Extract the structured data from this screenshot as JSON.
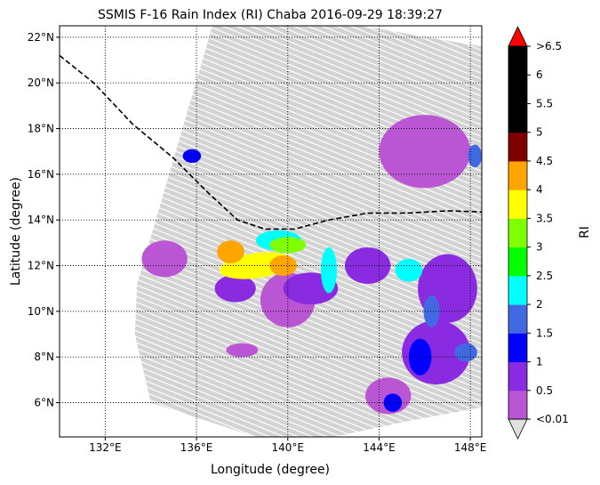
{
  "chart_data": {
    "type": "heatmap",
    "title": "SSMIS F-16 Rain Index (RI) Chaba 2016-09-29 18:39:27",
    "xlabel": "Longitude (degree)",
    "ylabel": "Latitude (degree)",
    "xlim": [
      130,
      148.5
    ],
    "ylim": [
      4.5,
      22.5
    ],
    "x_ticks": [
      {
        "value": 132,
        "label": "132°E"
      },
      {
        "value": 136,
        "label": "136°E"
      },
      {
        "value": 140,
        "label": "140°E"
      },
      {
        "value": 144,
        "label": "144°E"
      },
      {
        "value": 148,
        "label": "148°E"
      }
    ],
    "y_ticks": [
      {
        "value": 6,
        "label": "6°N"
      },
      {
        "value": 8,
        "label": "8°N"
      },
      {
        "value": 10,
        "label": "10°N"
      },
      {
        "value": 12,
        "label": "12°N"
      },
      {
        "value": 14,
        "label": "14°N"
      },
      {
        "value": 16,
        "label": "16°N"
      },
      {
        "value": 18,
        "label": "18°N"
      },
      {
        "value": 20,
        "label": "20°N"
      },
      {
        "value": 22,
        "label": "22°N"
      }
    ],
    "grid": true,
    "swath": {
      "color": "#d3d3d3",
      "polygon": [
        [
          136.7,
          22.5
        ],
        [
          143.2,
          22.5
        ],
        [
          148.5,
          21.6
        ],
        [
          148.5,
          5.8
        ],
        [
          145.3,
          5.2
        ],
        [
          142,
          4.5
        ],
        [
          138.6,
          4.5
        ],
        [
          134,
          6.0
        ],
        [
          133.3,
          9.0
        ],
        [
          133.4,
          11.2
        ]
      ]
    },
    "storm_track": {
      "style": "dashed",
      "color": "#000000",
      "points": [
        [
          130,
          21.2
        ],
        [
          131.5,
          20.0
        ],
        [
          133.2,
          18.2
        ],
        [
          135,
          16.7
        ],
        [
          136.5,
          15.2
        ],
        [
          137.8,
          14.0
        ],
        [
          139.0,
          13.6
        ],
        [
          140.3,
          13.6
        ],
        [
          141.8,
          14.0
        ],
        [
          143.5,
          14.3
        ],
        [
          145.2,
          14.3
        ],
        [
          147,
          14.4
        ],
        [
          148.5,
          14.35
        ]
      ]
    },
    "rain_cells": [
      {
        "lon": 138.6,
        "lat": 12.0,
        "rx": 1.6,
        "ry": 0.55,
        "rot": -8,
        "value": 3.8
      },
      {
        "lon": 137.5,
        "lat": 12.6,
        "rx": 0.6,
        "ry": 0.5,
        "rot": 0,
        "value": 4.0
      },
      {
        "lon": 139.8,
        "lat": 12.0,
        "rx": 0.6,
        "ry": 0.45,
        "rot": 0,
        "value": 4.2
      },
      {
        "lon": 140.0,
        "lat": 12.9,
        "rx": 0.8,
        "ry": 0.35,
        "rot": 0,
        "value": 3.2
      },
      {
        "lon": 139.6,
        "lat": 13.1,
        "rx": 1.0,
        "ry": 0.45,
        "rot": 0,
        "value": 2.2
      },
      {
        "lon": 141.8,
        "lat": 11.8,
        "rx": 0.35,
        "ry": 1.0,
        "rot": 0,
        "value": 2.2
      },
      {
        "lon": 145.3,
        "lat": 11.8,
        "rx": 0.6,
        "ry": 0.5,
        "rot": 0,
        "value": 2.2
      },
      {
        "lon": 146.3,
        "lat": 10.0,
        "rx": 0.35,
        "ry": 0.7,
        "rot": 0,
        "value": 1.7
      },
      {
        "lon": 147.8,
        "lat": 8.2,
        "rx": 0.5,
        "ry": 0.4,
        "rot": 0,
        "value": 1.7
      },
      {
        "lon": 145.8,
        "lat": 8.0,
        "rx": 0.5,
        "ry": 0.8,
        "rot": 0,
        "value": 1.2
      },
      {
        "lon": 148.2,
        "lat": 16.8,
        "rx": 0.3,
        "ry": 0.5,
        "rot": 0,
        "value": 1.7
      },
      {
        "lon": 135.8,
        "lat": 16.8,
        "rx": 0.4,
        "ry": 0.3,
        "rot": 0,
        "value": 1.2
      },
      {
        "lon": 144.6,
        "lat": 6.0,
        "rx": 0.4,
        "ry": 0.4,
        "rot": 0,
        "value": 1.2
      },
      {
        "lon": 137.7,
        "lat": 11.0,
        "rx": 0.9,
        "ry": 0.6,
        "rot": 0,
        "value": 0.7
      },
      {
        "lon": 141.0,
        "lat": 11.0,
        "rx": 1.2,
        "ry": 0.7,
        "rot": 0,
        "value": 0.7
      },
      {
        "lon": 143.5,
        "lat": 12.0,
        "rx": 1.0,
        "ry": 0.8,
        "rot": 0,
        "value": 0.7
      },
      {
        "lon": 147.0,
        "lat": 11.0,
        "rx": 1.3,
        "ry": 1.5,
        "rot": 0,
        "value": 0.7
      },
      {
        "lon": 146.5,
        "lat": 8.2,
        "rx": 1.5,
        "ry": 1.4,
        "rot": 0,
        "value": 0.7
      },
      {
        "lon": 146.0,
        "lat": 17.0,
        "rx": 2.0,
        "ry": 1.6,
        "rot": 0,
        "value": 0.3
      },
      {
        "lon": 134.6,
        "lat": 12.3,
        "rx": 1.0,
        "ry": 0.8,
        "rot": 0,
        "value": 0.3
      },
      {
        "lon": 140.0,
        "lat": 10.5,
        "rx": 1.2,
        "ry": 1.2,
        "rot": 0,
        "value": 0.3
      },
      {
        "lon": 144.4,
        "lat": 6.3,
        "rx": 1.0,
        "ry": 0.8,
        "rot": 0,
        "value": 0.3
      },
      {
        "lon": 138.0,
        "lat": 8.3,
        "rx": 0.7,
        "ry": 0.3,
        "rot": 0,
        "value": 0.3
      }
    ],
    "colorbar": {
      "label": "RI",
      "boundaries": [
        0.01,
        0.5,
        1,
        1.5,
        2,
        2.5,
        3,
        3.5,
        4,
        4.5,
        5,
        5.5,
        6,
        6.5
      ],
      "colors": [
        "#ba55d3",
        "#8a2be2",
        "#0000ff",
        "#4169e1",
        "#00ffff",
        "#00ff00",
        "#7fff00",
        "#ffff00",
        "#ffa500",
        "#800000",
        "#000000",
        "#000000",
        "#000000"
      ],
      "under_color": "#e0e0e0",
      "over_color": "#ff0000",
      "tick_labels": [
        "<0.01",
        "0.5",
        "1",
        "1.5",
        "2",
        "2.5",
        "3",
        "3.5",
        "4",
        "4.5",
        "5",
        "5.5",
        "6",
        ">6.5"
      ]
    }
  }
}
